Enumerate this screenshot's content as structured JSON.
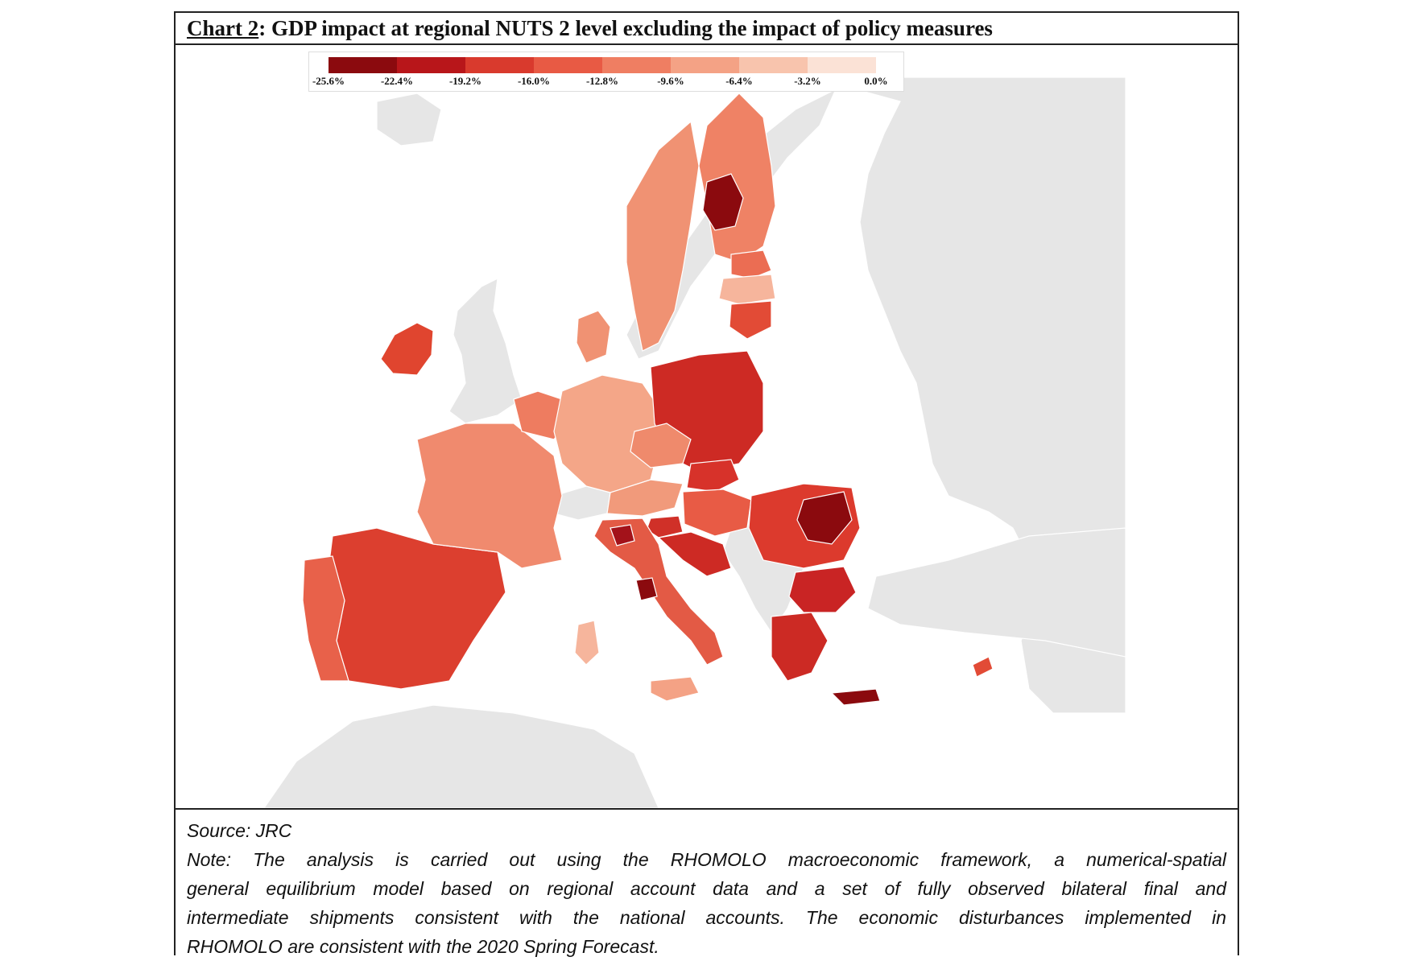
{
  "title": {
    "label": "Chart 2",
    "rest": ": GDP impact at regional NUTS 2 level excluding the impact of policy measures"
  },
  "legend": {
    "ticks": [
      "-25.6%",
      "-22.4%",
      "-19.2%",
      "-16.0%",
      "-12.8%",
      "-9.6%",
      "-6.4%",
      "-3.2%",
      "0.0%"
    ],
    "colors": [
      "#8b0a0e",
      "#b8161a",
      "#d93a2d",
      "#e85a44",
      "#ef7e62",
      "#f4a285",
      "#f8c4ad",
      "#fbe2d6"
    ]
  },
  "map": {
    "non_eu_color": "#e6e6e6",
    "border_color": "#ffffff",
    "regions": [
      {
        "name": "Ireland",
        "value_pct": -17
      },
      {
        "name": "Spain",
        "value_pct": -19
      },
      {
        "name": "Portugal",
        "value_pct": -17
      },
      {
        "name": "France",
        "value_pct": -13
      },
      {
        "name": "Belgium",
        "value_pct": -13
      },
      {
        "name": "Netherlands",
        "value_pct": -13
      },
      {
        "name": "Germany",
        "value_pct": -10
      },
      {
        "name": "Denmark",
        "value_pct": -12
      },
      {
        "name": "Sweden",
        "value_pct": -12
      },
      {
        "name": "Finland",
        "value_pct": -13
      },
      {
        "name": "Finland (central region)",
        "value_pct": -25
      },
      {
        "name": "Estonia",
        "value_pct": -15
      },
      {
        "name": "Latvia",
        "value_pct": -10
      },
      {
        "name": "Lithuania",
        "value_pct": -18
      },
      {
        "name": "Poland",
        "value_pct": -21
      },
      {
        "name": "Czechia",
        "value_pct": -14
      },
      {
        "name": "Austria",
        "value_pct": -12
      },
      {
        "name": "Slovakia",
        "value_pct": -20
      },
      {
        "name": "Hungary",
        "value_pct": -16
      },
      {
        "name": "Slovenia",
        "value_pct": -20
      },
      {
        "name": "Croatia",
        "value_pct": -21
      },
      {
        "name": "Romania",
        "value_pct": -19
      },
      {
        "name": "Romania (central region)",
        "value_pct": -25
      },
      {
        "name": "Bulgaria",
        "value_pct": -21
      },
      {
        "name": "Greece",
        "value_pct": -21
      },
      {
        "name": "Crete",
        "value_pct": -25
      },
      {
        "name": "Italy",
        "value_pct": -17
      },
      {
        "name": "Italy (north region)",
        "value_pct": -24
      },
      {
        "name": "Italy (central region)",
        "value_pct": -25
      },
      {
        "name": "Sardinia",
        "value_pct": -10
      },
      {
        "name": "Sicily",
        "value_pct": -11
      },
      {
        "name": "Cyprus",
        "value_pct": -18
      }
    ]
  },
  "source": "Source: JRC",
  "note_lines": [
    "Note: The analysis is carried out using the RHOMOLO macroeconomic framework, a numerical-spatial",
    "general equilibrium model based on regional account data and a set of fully observed bilateral final and",
    "intermediate shipments consistent with the national accounts. The economic disturbances implemented in",
    "RHOMOLO are consistent with the 2020 Spring Forecast."
  ]
}
